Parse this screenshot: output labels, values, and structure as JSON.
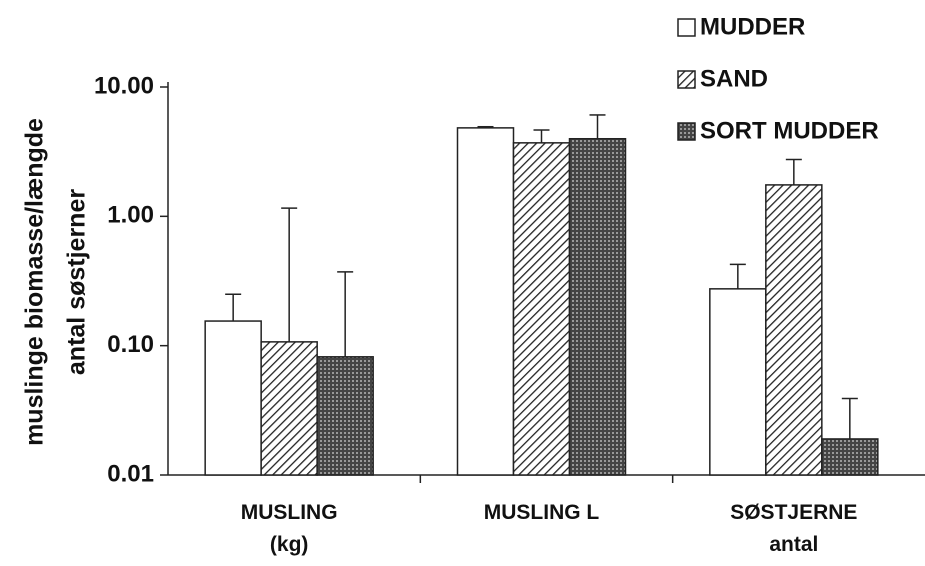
{
  "chart_data": {
    "type": "bar",
    "ylabel": [
      "muslinge biomasse/længde",
      "antal søstjerner"
    ],
    "categories": [
      "MUSLING\n(kg)",
      "MUSLING L",
      "SØSTJERNE\nantal"
    ],
    "series": [
      {
        "name": "MUDDER",
        "color": "#ffffff",
        "pattern": "none",
        "values": [
          0.155,
          4.83,
          0.275
        ],
        "errors": [
          0.095,
          0.1,
          0.15
        ]
      },
      {
        "name": "SAND",
        "color": "#222222",
        "pattern": "hatch",
        "values": [
          0.107,
          3.7,
          1.75
        ],
        "errors": [
          1.05,
          0.95,
          1.0
        ]
      },
      {
        "name": "SORT MUDDER",
        "color": "#222222",
        "pattern": "dense",
        "values": [
          0.082,
          3.98,
          0.019
        ],
        "errors": [
          0.29,
          2.1,
          0.02
        ]
      }
    ],
    "ylim": [
      0.01,
      10
    ],
    "log_y": true,
    "yticks": [
      {
        "value": 0.01,
        "label": "0.01"
      },
      {
        "value": 0.1,
        "label": "0.10"
      },
      {
        "value": 1,
        "label": "1.00"
      },
      {
        "value": 10,
        "label": "10.00"
      }
    ],
    "legend": "top-right"
  }
}
